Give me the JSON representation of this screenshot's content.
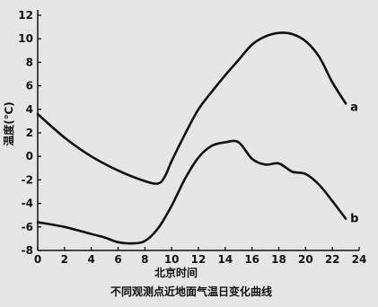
{
  "chart_data": {
    "type": "line",
    "title": "不同观测点近地面气温日变化曲线",
    "xlabel": "北京时间",
    "ylabel": "温度(℃)",
    "xlim": [
      0,
      24
    ],
    "ylim": [
      -8,
      12
    ],
    "x_ticks": [
      0,
      2,
      4,
      6,
      8,
      10,
      12,
      14,
      16,
      18,
      20,
      22,
      24
    ],
    "y_ticks": [
      -8,
      -6,
      -4,
      -2,
      0,
      2,
      4,
      6,
      8,
      10,
      12
    ],
    "grid": false,
    "series": [
      {
        "name": "a",
        "x": [
          0,
          2,
          4,
          6,
          8,
          9,
          9.5,
          10,
          11,
          12,
          13,
          14,
          15,
          16,
          17,
          18,
          19,
          20,
          21,
          22,
          23
        ],
        "y": [
          3.6,
          1.6,
          0,
          -1.2,
          -2.1,
          -2.3,
          -1.7,
          -0.4,
          1.9,
          4.0,
          5.5,
          6.9,
          8.2,
          9.5,
          10.2,
          10.5,
          10.4,
          9.8,
          8.5,
          6.3,
          4.5
        ]
      },
      {
        "name": "b",
        "x": [
          0,
          2,
          4,
          5,
          6,
          7,
          8,
          9,
          10,
          11,
          12,
          13,
          14,
          15,
          16,
          17,
          18,
          19,
          20,
          21,
          22,
          23
        ],
        "y": [
          -5.6,
          -6.0,
          -6.6,
          -6.9,
          -7.3,
          -7.4,
          -7.2,
          -6.1,
          -4.2,
          -1.9,
          -0.1,
          0.9,
          1.2,
          1.2,
          -0.2,
          -0.7,
          -0.6,
          -1.3,
          -1.5,
          -2.4,
          -3.8,
          -5.3
        ]
      }
    ]
  }
}
